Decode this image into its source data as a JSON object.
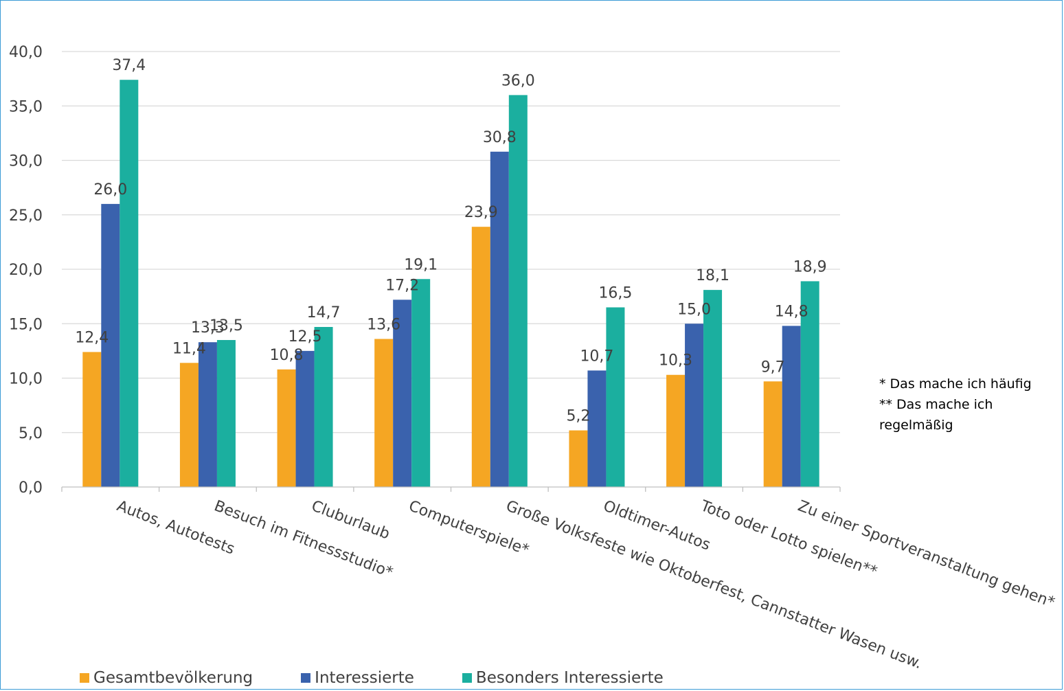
{
  "chart_data": {
    "type": "bar",
    "categories": [
      "Autos, Autotests",
      "Besuch im Fitnessstudio*",
      "Cluburlaub",
      "Computerspiele*",
      "Große Volksfeste wie Oktoberfest, Cannstatter Wasen usw.",
      "Oldtimer-Autos",
      "Toto oder Lotto spielen**",
      "Zu einer Sportveranstaltung gehen*"
    ],
    "series": [
      {
        "name": "Gesamtbevölkerung",
        "color": "#f5a623",
        "values": [
          12.4,
          11.4,
          10.8,
          13.6,
          23.9,
          5.2,
          10.3,
          9.7
        ],
        "labels": [
          "12,4",
          "11,4",
          "10,8",
          "13,6",
          "23,9",
          "5,2",
          "10,3",
          "9,7"
        ]
      },
      {
        "name": "Interessierte",
        "color": "#3a62ad",
        "values": [
          26.0,
          13.3,
          12.5,
          17.2,
          30.8,
          10.7,
          15.0,
          14.8
        ],
        "labels": [
          "26,0",
          "13,3",
          "12,5",
          "17,2",
          "30,8",
          "10,7",
          "15,0",
          "14,8"
        ]
      },
      {
        "name": "Besonders Interessierte",
        "color": "#1baf9f",
        "values": [
          37.4,
          13.5,
          14.7,
          19.1,
          36.0,
          16.5,
          18.1,
          18.9
        ],
        "labels": [
          "37,4",
          "13,5",
          "14,7",
          "19,1",
          "36,0",
          "16,5",
          "18,1",
          "18,9"
        ]
      }
    ],
    "ylim": [
      0,
      40
    ],
    "yticks": [
      0,
      5,
      10,
      15,
      20,
      25,
      30,
      35,
      40
    ],
    "ytick_labels": [
      "0,0",
      "5,0",
      "10,0",
      "15,0",
      "20,0",
      "25,0",
      "30,0",
      "35,0",
      "40,0"
    ],
    "grid": true,
    "legend_position": "bottom",
    "gridline_color": "#d9d9d9",
    "axis_color": "#bfbfbf"
  },
  "notes": [
    "* Das mache ich häufig",
    "** Das mache ich",
    "regelmäßig"
  ]
}
